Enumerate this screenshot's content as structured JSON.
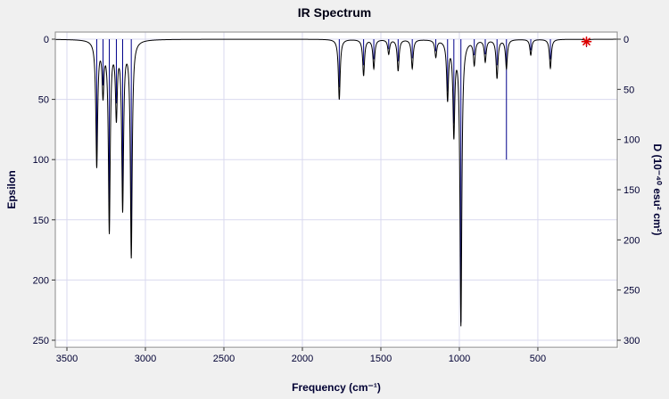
{
  "chart_data": {
    "type": "line",
    "title": "IR Spectrum",
    "xlabel": "Frequency (cm⁻¹)",
    "ylabel_left": "Epsilon",
    "ylabel_right": "D (10⁻⁴⁰ esu² cm²)",
    "x_range": [
      3500,
      0
    ],
    "x_axis_reversed": true,
    "x_ticks": [
      3500,
      3000,
      2500,
      2000,
      1500,
      1000,
      500
    ],
    "y_left_range": [
      0,
      250
    ],
    "y_left_ticks": [
      0,
      50,
      100,
      150,
      200,
      250
    ],
    "y_right_range": [
      0,
      300
    ],
    "y_right_ticks": [
      0,
      50,
      100,
      150,
      200,
      250,
      300
    ],
    "y_inverted": true,
    "grid": true,
    "legend": "none",
    "peak_hwhm": 7,
    "modes": [
      {
        "freq": 3310,
        "epsilon": 104,
        "d": 115
      },
      {
        "freq": 3270,
        "epsilon": 42,
        "d": 46
      },
      {
        "freq": 3230,
        "epsilon": 157,
        "d": 172
      },
      {
        "freq": 3185,
        "epsilon": 60,
        "d": 64
      },
      {
        "freq": 3145,
        "epsilon": 138,
        "d": 152
      },
      {
        "freq": 3090,
        "epsilon": 179,
        "d": 198
      },
      {
        "freq": 1765,
        "epsilon": 50,
        "d": 48
      },
      {
        "freq": 1610,
        "epsilon": 30,
        "d": 26
      },
      {
        "freq": 1545,
        "epsilon": 24,
        "d": 20
      },
      {
        "freq": 1450,
        "epsilon": 12,
        "d": 10
      },
      {
        "freq": 1390,
        "epsilon": 26,
        "d": 22
      },
      {
        "freq": 1300,
        "epsilon": 24,
        "d": 19
      },
      {
        "freq": 1150,
        "epsilon": 14,
        "d": 12
      },
      {
        "freq": 1075,
        "epsilon": 48,
        "d": 52
      },
      {
        "freq": 1035,
        "epsilon": 76,
        "d": 84
      },
      {
        "freq": 990,
        "epsilon": 236,
        "d": 282
      },
      {
        "freq": 905,
        "epsilon": 20,
        "d": 16
      },
      {
        "freq": 835,
        "epsilon": 18,
        "d": 15
      },
      {
        "freq": 760,
        "epsilon": 32,
        "d": 26
      },
      {
        "freq": 700,
        "epsilon": 24,
        "d": 120
      },
      {
        "freq": 545,
        "epsilon": 13,
        "d": 11
      },
      {
        "freq": 420,
        "epsilon": 24,
        "d": 20
      },
      {
        "freq": 190,
        "epsilon": 3,
        "d": 8
      }
    ],
    "marker": {
      "freq": 190,
      "epsilon": 2,
      "shape": "asterisk",
      "color": "#dd0000"
    }
  },
  "colors": {
    "figure_bg": "#f0f0f0",
    "plot_bg": "#ffffff",
    "grid": "#d9d9ef",
    "frame": "#8a8a8a",
    "frame_highlight": "#ffffff",
    "curve": "#000000",
    "impulse": "#00008b",
    "tick": "#333333",
    "text": "#000033",
    "marker": "#dd0000"
  }
}
